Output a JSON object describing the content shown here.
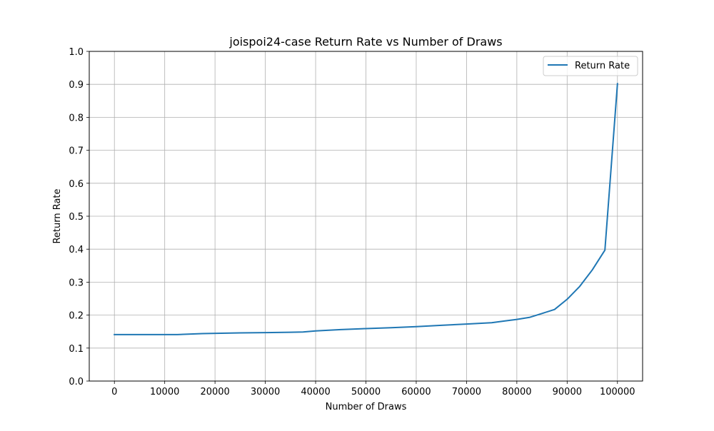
{
  "chart_data": {
    "type": "line",
    "title": "joispoi24-case Return Rate vs Number of Draws",
    "xlabel": "Number of Draws",
    "ylabel": "Return Rate",
    "xlim": [
      -5000,
      105000
    ],
    "ylim": [
      0.0,
      1.0
    ],
    "x_ticks": [
      0,
      10000,
      20000,
      30000,
      40000,
      50000,
      60000,
      70000,
      80000,
      90000,
      100000
    ],
    "x_tick_labels": [
      "0",
      "10000",
      "20000",
      "30000",
      "40000",
      "50000",
      "60000",
      "70000",
      "80000",
      "90000",
      "100000"
    ],
    "y_ticks": [
      0.0,
      0.1,
      0.2,
      0.3,
      0.4,
      0.5,
      0.6,
      0.7,
      0.8,
      0.9,
      1.0
    ],
    "y_tick_labels": [
      "0.0",
      "0.1",
      "0.2",
      "0.3",
      "0.4",
      "0.5",
      "0.6",
      "0.7",
      "0.8",
      "0.9",
      "1.0"
    ],
    "grid": true,
    "legend_position": "top-right",
    "series": [
      {
        "name": "Return Rate",
        "color": "#1f77b4",
        "x": [
          0,
          5000,
          10000,
          12500,
          17500,
          25000,
          30000,
          35000,
          37500,
          40000,
          45000,
          50000,
          55000,
          60000,
          65000,
          70000,
          75000,
          77500,
          80000,
          82500,
          85000,
          87500,
          90000,
          92500,
          95000,
          97500,
          100000
        ],
        "values": [
          0.141,
          0.141,
          0.141,
          0.141,
          0.144,
          0.146,
          0.147,
          0.148,
          0.149,
          0.152,
          0.156,
          0.159,
          0.162,
          0.165,
          0.169,
          0.173,
          0.177,
          0.182,
          0.187,
          0.193,
          0.205,
          0.217,
          0.248,
          0.287,
          0.337,
          0.397,
          0.902
        ]
      }
    ]
  }
}
